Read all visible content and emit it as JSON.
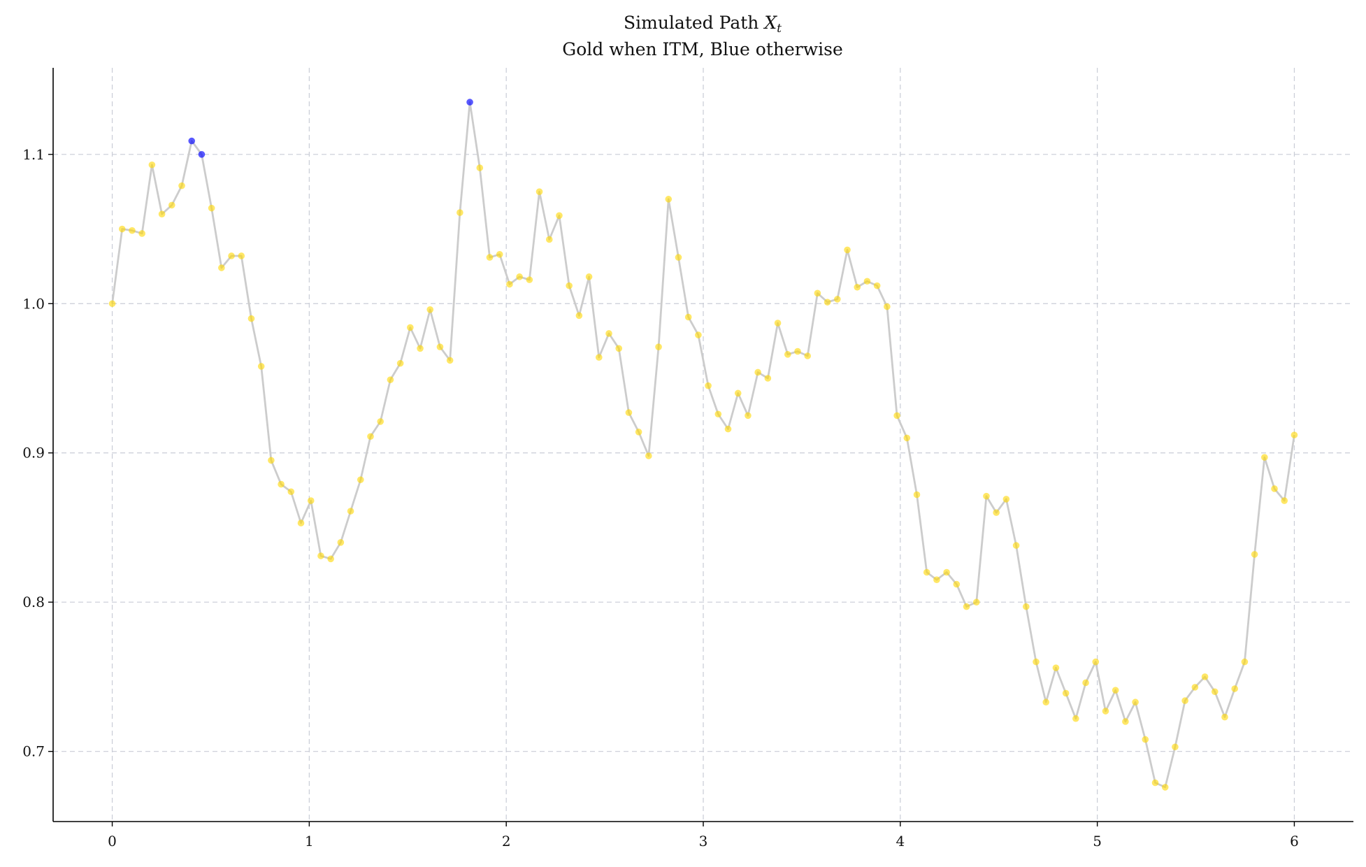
{
  "chart_data": {
    "type": "line",
    "title_line1": "Simulated Path ",
    "title_math": "X",
    "title_sub": "t",
    "title_line2": "Gold when ITM, Blue otherwise",
    "xlabel": "",
    "ylabel": "",
    "xlim": [
      -0.3,
      6.3
    ],
    "ylim": [
      0.653,
      1.158
    ],
    "x_ticks": [
      0,
      1,
      2,
      3,
      4,
      5,
      6
    ],
    "x_tick_labels": [
      "0",
      "1",
      "2",
      "3",
      "4",
      "5",
      "6"
    ],
    "y_ticks": [
      0.7,
      0.8,
      0.9,
      1.0,
      1.1
    ],
    "y_tick_labels": [
      "0.7",
      "0.8",
      "0.9",
      "1.0",
      "1.1"
    ],
    "grid": true,
    "x_start": 0,
    "x_end": 6,
    "values": [
      1.0,
      1.05,
      1.049,
      1.047,
      1.093,
      1.06,
      1.066,
      1.079,
      1.109,
      1.1,
      1.064,
      1.024,
      1.032,
      1.032,
      0.99,
      0.958,
      0.895,
      0.879,
      0.874,
      0.853,
      0.868,
      0.831,
      0.829,
      0.84,
      0.861,
      0.882,
      0.911,
      0.921,
      0.949,
      0.96,
      0.984,
      0.97,
      0.996,
      0.971,
      0.962,
      1.061,
      1.135,
      1.091,
      1.031,
      1.033,
      1.013,
      1.018,
      1.016,
      1.075,
      1.043,
      1.059,
      1.012,
      0.992,
      1.018,
      0.964,
      0.98,
      0.97,
      0.927,
      0.914,
      0.898,
      0.971,
      1.07,
      1.031,
      0.991,
      0.979,
      0.945,
      0.926,
      0.916,
      0.94,
      0.925,
      0.954,
      0.95,
      0.987,
      0.966,
      0.968,
      0.965,
      1.007,
      1.001,
      1.003,
      1.036,
      1.011,
      1.015,
      1.012,
      0.998,
      0.925,
      0.91,
      0.872,
      0.82,
      0.815,
      0.82,
      0.812,
      0.797,
      0.8,
      0.871,
      0.86,
      0.869,
      0.838,
      0.797,
      0.76,
      0.733,
      0.756,
      0.739,
      0.722,
      0.746,
      0.76,
      0.727,
      0.741,
      0.72,
      0.733,
      0.708,
      0.679,
      0.676,
      0.703,
      0.734,
      0.743,
      0.75,
      0.74,
      0.723,
      0.742,
      0.76,
      0.832,
      0.897,
      0.876,
      0.868,
      0.912
    ],
    "otm_indices": [
      8,
      9,
      36
    ],
    "line_color": "#cccccc",
    "itm_color": "#FFD700",
    "otm_color": "#0000FF",
    "series": [
      {
        "name": "",
        "role": "path"
      }
    ]
  }
}
